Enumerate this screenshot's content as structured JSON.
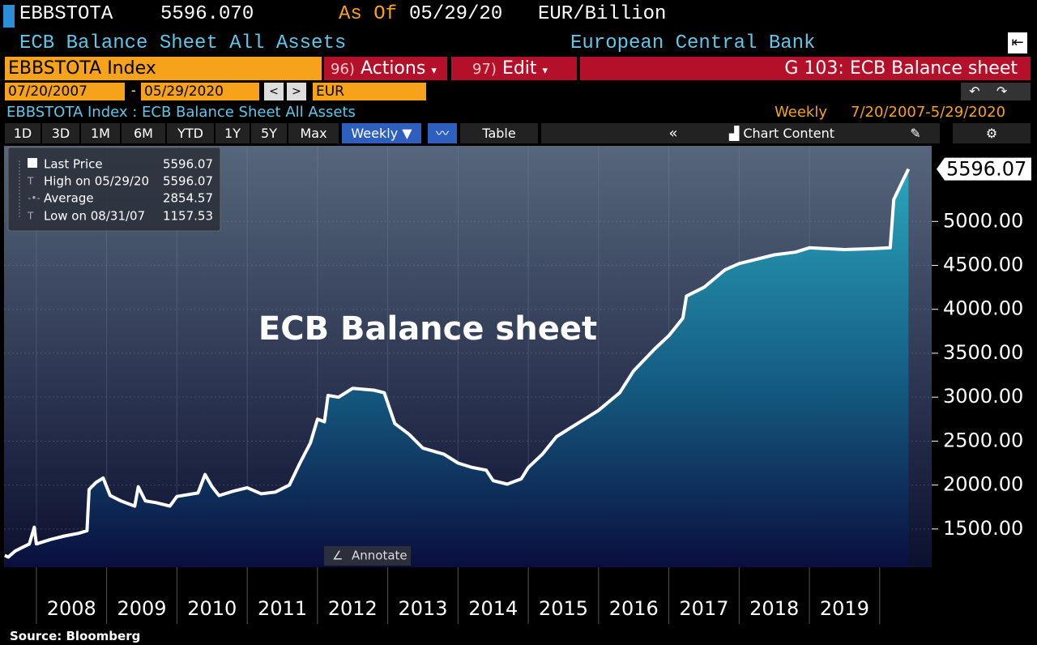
{
  "header": {
    "ticker": "EBBSTOTA",
    "price": "5596.070",
    "as_of_label": "As Of",
    "as_of": "05/29/20",
    "units": "EUR/Billion",
    "name": "ECB Balance Sheet All Assets",
    "source_name": "European Central Bank"
  },
  "toolbar": {
    "security": "EBBSTOTA Index",
    "actions_code": "96)",
    "actions": "Actions",
    "edit_code": "97)",
    "edit": "Edit",
    "chart_title": "G 103: ECB Balance sheet",
    "start_date": "07/20/2007",
    "end_date": "05/29/2020",
    "currency": "EUR"
  },
  "subheader": {
    "description": "EBBSTOTA Index : ECB Balance Sheet All Assets",
    "frequency": "Weekly",
    "range": "7/20/2007-5/29/2020"
  },
  "tabs": {
    "periods": [
      "1D",
      "3D",
      "1M",
      "6M",
      "YTD",
      "1Y",
      "5Y",
      "Max"
    ],
    "frequency": "Weekly",
    "table": "Table",
    "chart_content": "Chart Content"
  },
  "chart_data": {
    "type": "line",
    "annotation": "ECB Balance sheet",
    "annotate_button": "Annotate",
    "x": [
      2007.55,
      2007.6,
      2007.7,
      2007.8,
      2007.9,
      2007.97,
      2008.0,
      2008.2,
      2008.4,
      2008.6,
      2008.72,
      2008.75,
      2008.85,
      2008.95,
      2009.05,
      2009.2,
      2009.4,
      2009.45,
      2009.55,
      2009.7,
      2009.9,
      2010.0,
      2010.3,
      2010.4,
      2010.5,
      2010.6,
      2010.8,
      2011.0,
      2011.2,
      2011.4,
      2011.6,
      2011.75,
      2011.9,
      2012.0,
      2012.1,
      2012.15,
      2012.3,
      2012.5,
      2012.8,
      2012.95,
      2013.1,
      2013.3,
      2013.5,
      2013.8,
      2014.0,
      2014.2,
      2014.4,
      2014.5,
      2014.7,
      2014.9,
      2015.0,
      2015.2,
      2015.4,
      2015.6,
      2015.8,
      2016.0,
      2016.3,
      2016.5,
      2016.8,
      2017.0,
      2017.2,
      2017.25,
      2017.5,
      2017.8,
      2018.0,
      2018.5,
      2018.8,
      2019.0,
      2019.5,
      2019.9,
      2020.15,
      2020.2,
      2020.32,
      2020.41
    ],
    "series": [
      {
        "name": "Last Price",
        "color": "#ffffff",
        "values": [
          1200,
          1180,
          1250,
          1290,
          1330,
          1520,
          1330,
          1380,
          1420,
          1450,
          1480,
          1950,
          2030,
          2080,
          1880,
          1820,
          1760,
          1980,
          1820,
          1800,
          1760,
          1870,
          1910,
          2120,
          1980,
          1880,
          1930,
          1970,
          1900,
          1920,
          2000,
          2250,
          2480,
          2750,
          2720,
          3020,
          3000,
          3100,
          3080,
          3050,
          2700,
          2580,
          2420,
          2350,
          2250,
          2200,
          2170,
          2050,
          2010,
          2070,
          2200,
          2350,
          2550,
          2650,
          2750,
          2850,
          3050,
          3300,
          3550,
          3700,
          3900,
          4150,
          4250,
          4450,
          4520,
          4620,
          4650,
          4700,
          4680,
          4690,
          4700,
          5250,
          5450,
          5596.07
        ]
      }
    ],
    "last_value": 5596.07,
    "stats": [
      {
        "label": "High on 05/29/20",
        "value": 5596.07
      },
      {
        "label": "Average",
        "value": 2854.57
      },
      {
        "label": "Low on 08/31/07",
        "value": 1157.53
      }
    ],
    "xlim": [
      2007.54,
      2020.74
    ],
    "xticks": [
      2008,
      2009,
      2010,
      2011,
      2012,
      2013,
      2014,
      2015,
      2016,
      2017,
      2018,
      2019
    ],
    "ylim": [
      1065,
      5860
    ],
    "yticks": [
      {
        "value": 1500,
        "label": "1500.00"
      },
      {
        "value": 2000,
        "label": "2000.00"
      },
      {
        "value": 2500,
        "label": "2500.00"
      },
      {
        "value": 3000,
        "label": "3000.00"
      },
      {
        "value": 3500,
        "label": "3500.00"
      },
      {
        "value": 4000,
        "label": "4000.00"
      },
      {
        "value": 4500,
        "label": "4500.00"
      },
      {
        "value": 5000,
        "label": "5000.00"
      }
    ],
    "grid": true
  },
  "footer": {
    "source": "Source: Bloomberg"
  }
}
